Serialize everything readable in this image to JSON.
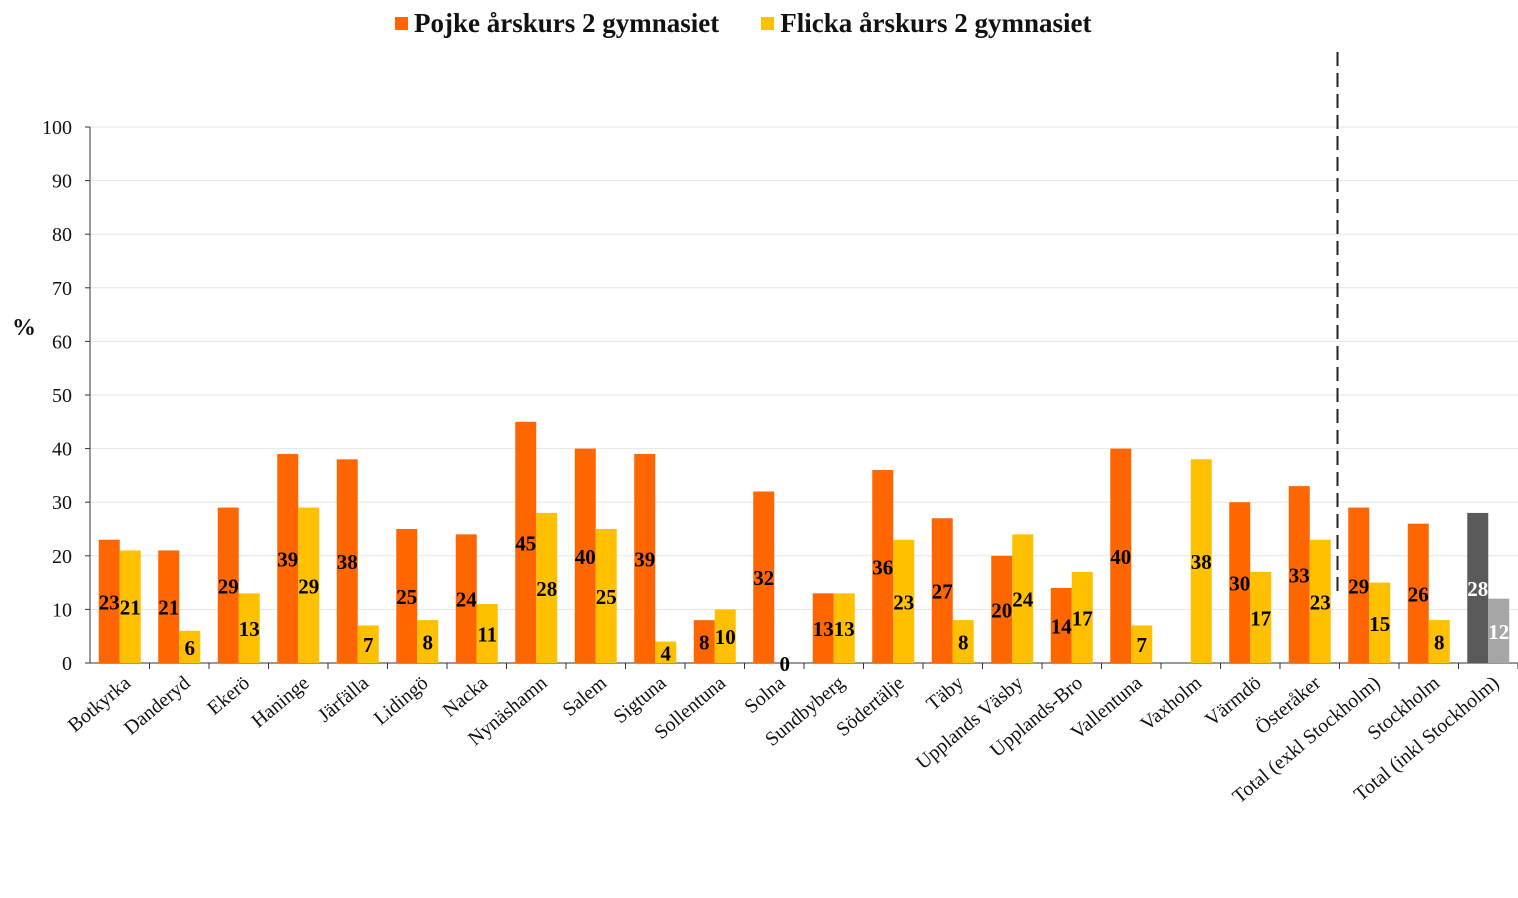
{
  "chart_data": {
    "type": "bar",
    "ylabel": "%",
    "ylim": [
      0,
      100
    ],
    "yticks": [
      0,
      10,
      20,
      30,
      40,
      50,
      60,
      70,
      80,
      90,
      100
    ],
    "grid": true,
    "legend_position": "top-center",
    "categories": [
      "Botkyrka",
      "Danderyd",
      "Ekerö",
      "Haninge",
      "Järfälla",
      "Lidingö",
      "Nacka",
      "Nynäshamn",
      "Salem",
      "Sigtuna",
      "Sollentuna",
      "Solna",
      "Sundbyberg",
      "Södertälje",
      "Täby",
      "Upplands Väsby",
      "Upplands-Bro",
      "Vallentuna",
      "Vaxholm",
      "Värmdö",
      "Österåker",
      "Total (exkl Stockholm)",
      "Stockholm",
      "Total (inkl Stockholm)"
    ],
    "series": [
      {
        "name": "Pojke årskurs 2 gymnasiet",
        "color": "#FF6600",
        "values": [
          23,
          21,
          29,
          39,
          38,
          25,
          24,
          45,
          40,
          39,
          8,
          32,
          13,
          36,
          27,
          20,
          14,
          40,
          null,
          30,
          33,
          29,
          26,
          28
        ],
        "labels": [
          "23",
          "21",
          "29",
          "39",
          "38",
          "25",
          "24",
          "45",
          "40",
          "39",
          "8",
          "32",
          "13",
          "36",
          "27",
          "20",
          "14",
          "40",
          "",
          "30",
          "33",
          "29",
          "26",
          "28"
        ]
      },
      {
        "name": "Flicka årskurs 2 gymnasiet",
        "color": "#FFC000",
        "values": [
          21,
          6,
          13,
          29,
          7,
          8,
          11,
          28,
          25,
          4,
          10,
          0,
          13,
          23,
          8,
          24,
          17,
          7,
          38,
          17,
          23,
          15,
          8,
          12
        ],
        "labels": [
          "21",
          "6",
          "13",
          "29",
          "7",
          "8",
          "11",
          "28",
          "25",
          "4",
          "10",
          "0",
          "13",
          "23",
          "8",
          "24",
          "17",
          "7",
          "38",
          "17",
          "23",
          "15",
          "8",
          "12"
        ]
      }
    ],
    "last_category_colors": {
      "Pojke årskurs 2 gymnasiet": "#595959",
      "Flicka årskurs 2 gymnasiet": "#A6A6A6"
    },
    "label_colors": {
      "default": "#000000",
      "last_category": "#FFFFFF"
    },
    "divider": {
      "style": "dashed",
      "between": [
        "Österåker",
        "Total (exkl Stockholm)"
      ]
    }
  }
}
